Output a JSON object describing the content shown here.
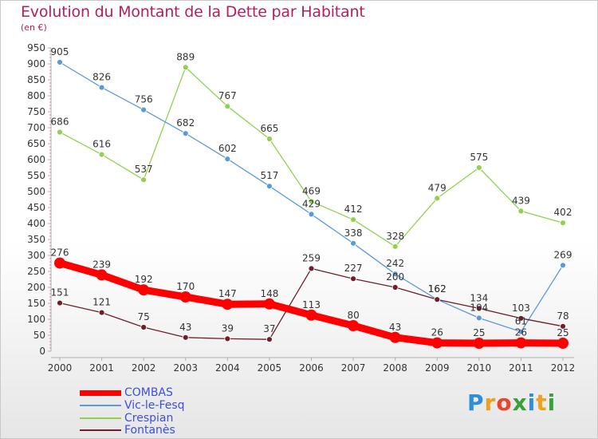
{
  "header": {
    "title": "Evolution du Montant de la Dette par Habitant",
    "subtitle": "(en €)"
  },
  "logo": {
    "text": "Proxiti"
  },
  "colors": {
    "COMBAS": "#ff0000",
    "Vic-le-Fesq": "#5b9bd5",
    "Crespian": "#92d050",
    "Fontanès": "#6d1f2a",
    "title": "#b41e5a",
    "legend_text": "#3b4fe0"
  },
  "chart_data": {
    "type": "line",
    "title": "Evolution du Montant de la Dette par Habitant",
    "subtitle": "(en €)",
    "xlabel": "",
    "ylabel": "",
    "ylim": [
      0,
      950
    ],
    "yticks": [
      0,
      50,
      100,
      150,
      200,
      250,
      300,
      350,
      400,
      450,
      500,
      550,
      600,
      650,
      700,
      750,
      800,
      850,
      900,
      950
    ],
    "x": [
      "2000",
      "2001",
      "2002",
      "2003",
      "2004",
      "2005",
      "2006",
      "2007",
      "2008",
      "2009",
      "2010",
      "2011",
      "2012"
    ],
    "grid": false,
    "legend_position": "bottom-left",
    "series": [
      {
        "name": "COMBAS",
        "values": [
          276,
          239,
          192,
          170,
          147,
          148,
          113,
          80,
          43,
          26,
          25,
          26,
          25
        ]
      },
      {
        "name": "Vic-le-Fesq",
        "values": [
          905,
          826,
          756,
          682,
          602,
          517,
          429,
          338,
          242,
          162,
          104,
          61,
          269
        ]
      },
      {
        "name": "Crespian",
        "values": [
          686,
          616,
          537,
          889,
          767,
          665,
          469,
          412,
          328,
          479,
          575,
          439,
          402
        ]
      },
      {
        "name": "Fontanès",
        "values": [
          151,
          121,
          75,
          43,
          39,
          37,
          259,
          227,
          200,
          162,
          134,
          103,
          78
        ]
      }
    ]
  }
}
